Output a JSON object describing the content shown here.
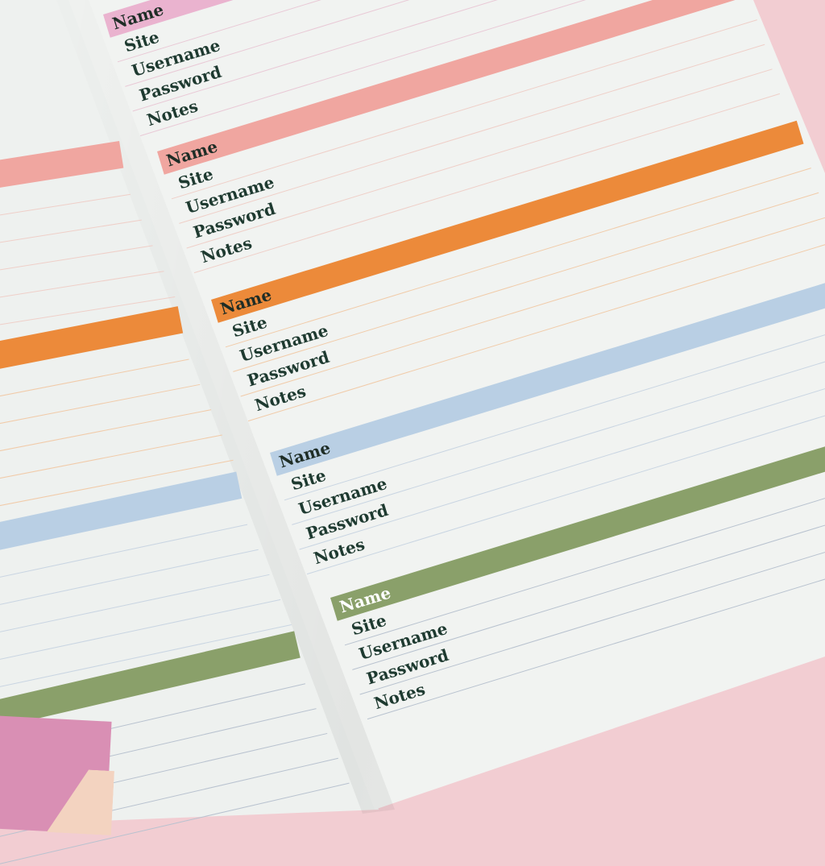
{
  "colors": {
    "pink": "#f0a6a0",
    "pink_top": "#eab3cf",
    "orange": "#ec8a3a",
    "blue": "#b9cfe4",
    "green": "#8aa06a",
    "text": "#1e3a30"
  },
  "entry_labels": {
    "name": "Name",
    "site": "Site",
    "username": "Username",
    "password": "Password",
    "notes": "Notes"
  }
}
